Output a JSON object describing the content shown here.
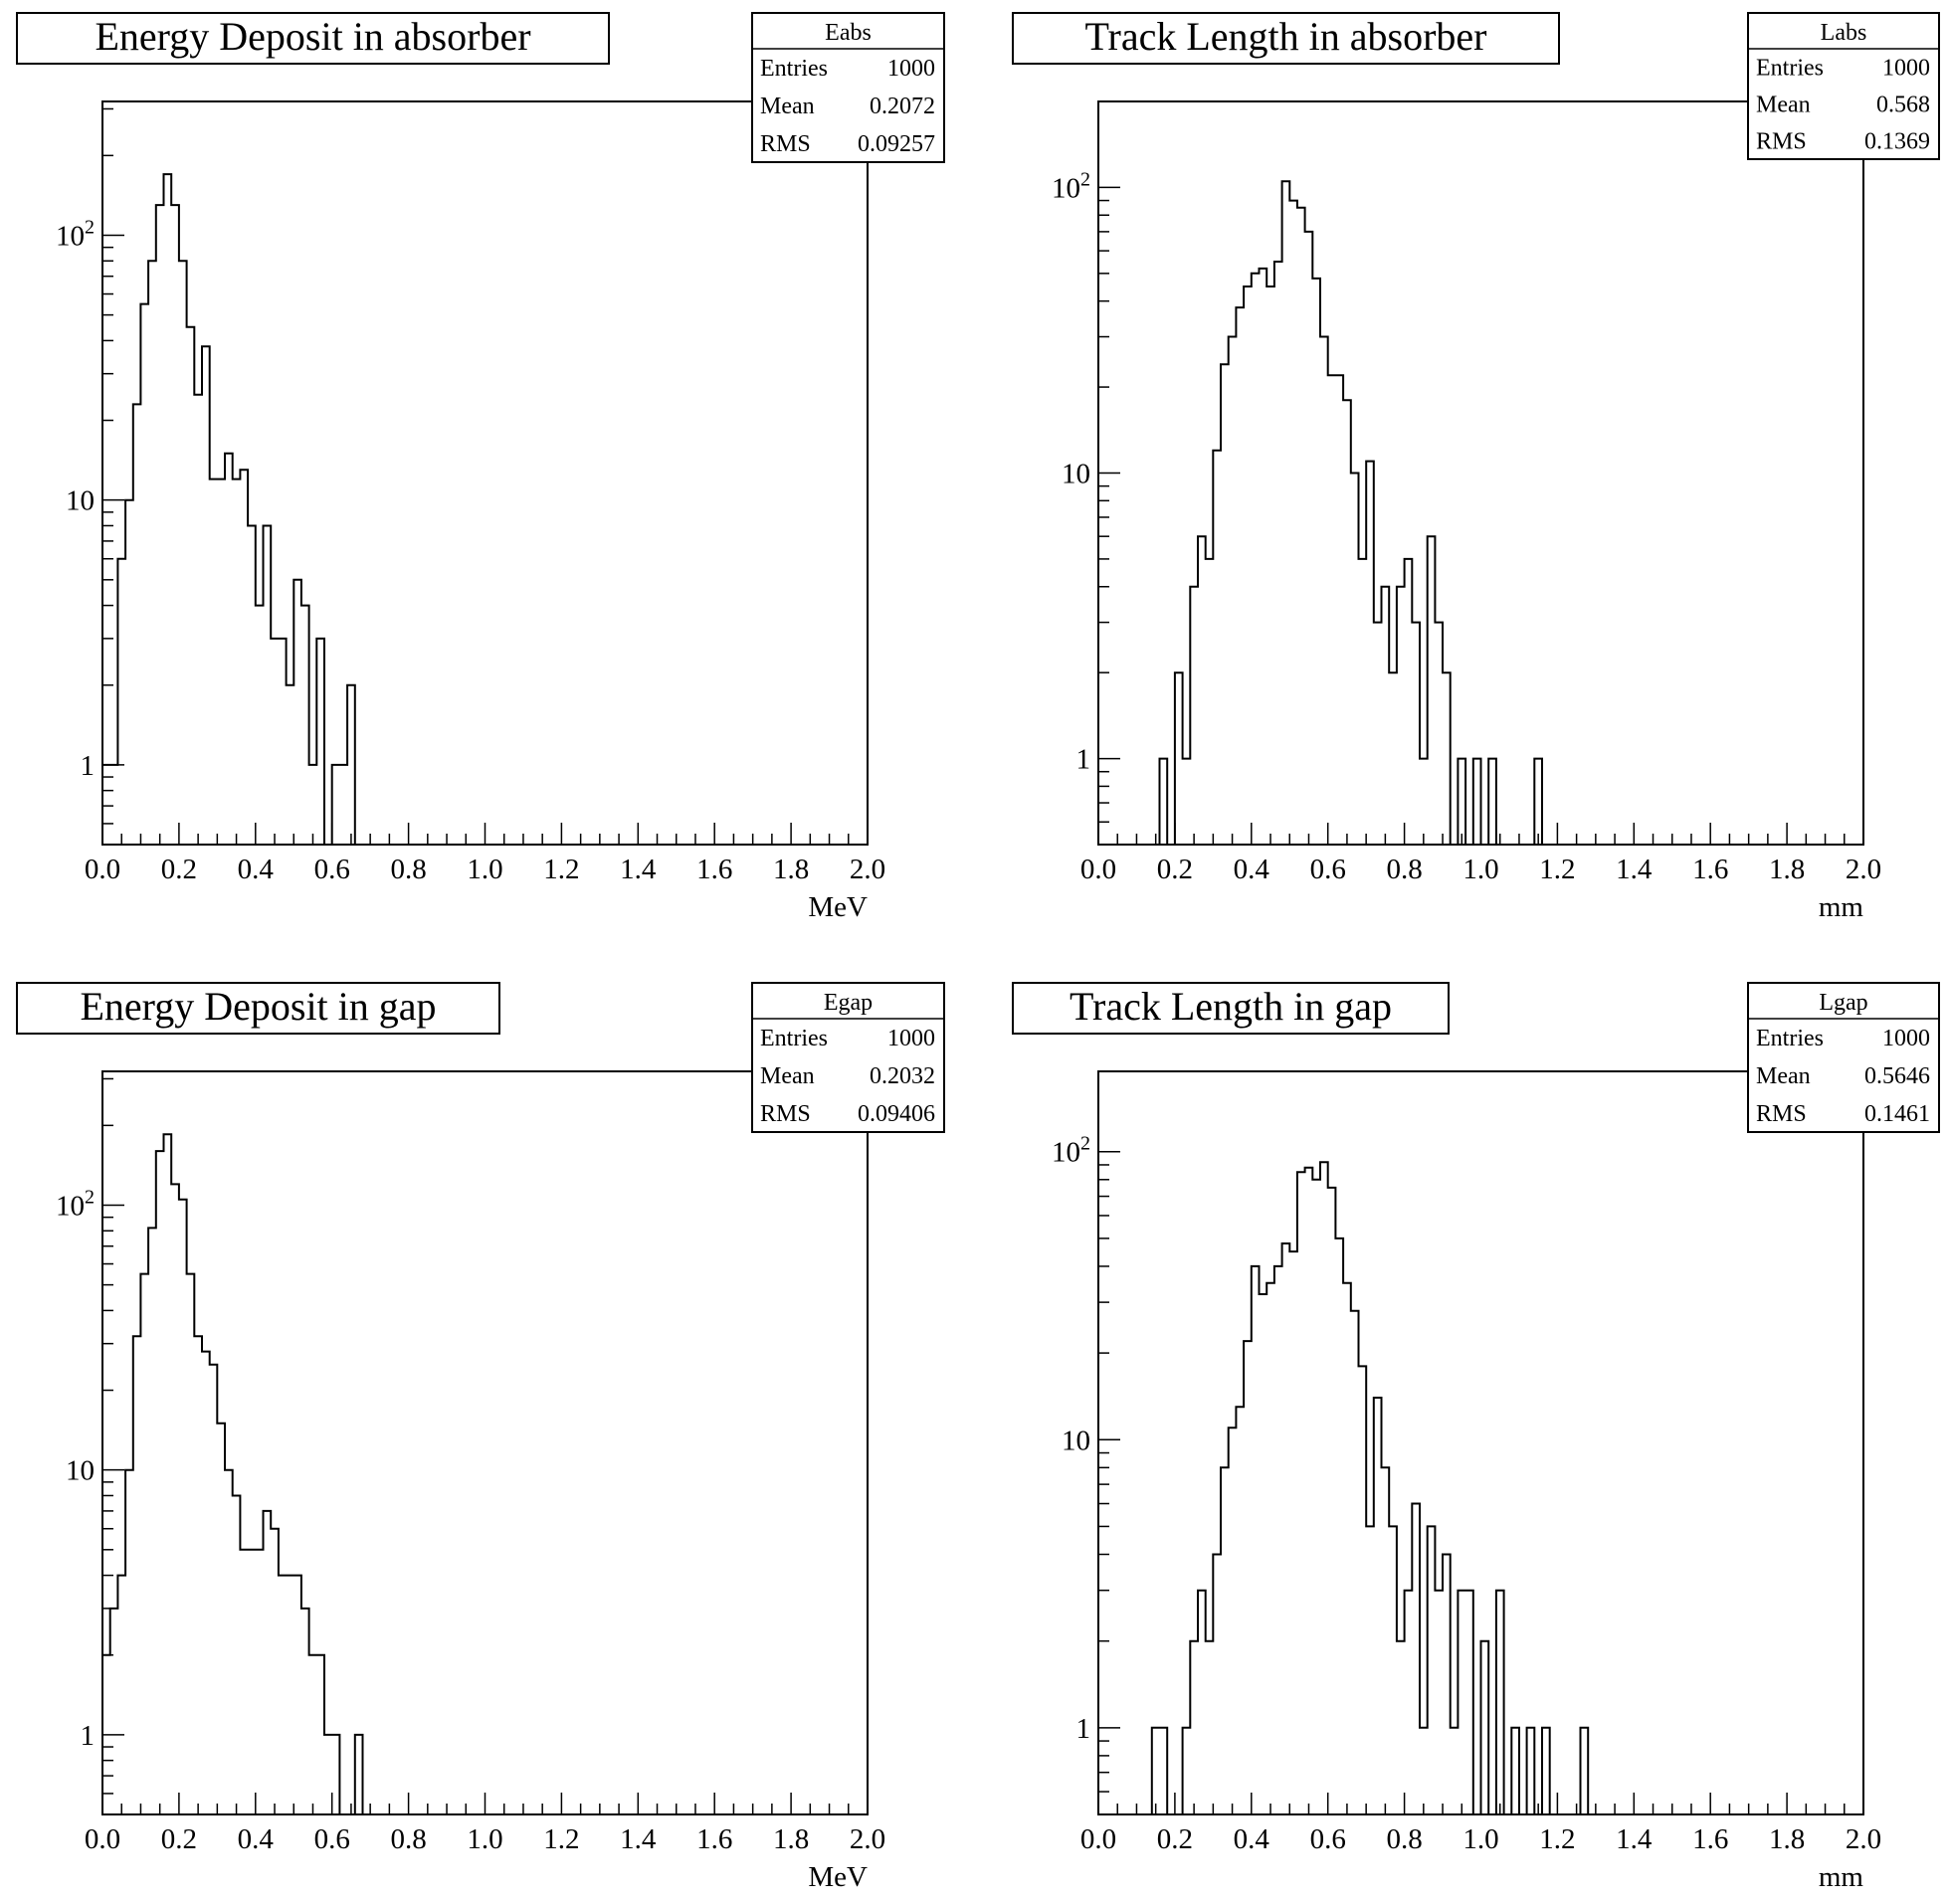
{
  "style": {
    "line_color": "#000000",
    "background": "#ffffff"
  },
  "chart_data": [
    {
      "id": "Eabs",
      "type": "histogram",
      "title": "Energy Deposit in absorber",
      "xlabel": "MeV",
      "ylabel": "",
      "xlim": [
        0.0,
        2.0
      ],
      "ylim": [
        0.5,
        320
      ],
      "yscale": "log",
      "grid": false,
      "stats_placement": "top-right",
      "x_ticks": [
        "0.0",
        "0.2",
        "0.4",
        "0.6",
        "0.8",
        "1.0",
        "1.2",
        "1.4",
        "1.6",
        "1.8",
        "2.0"
      ],
      "y_ticks": [
        {
          "value": 1,
          "label": "1"
        },
        {
          "value": 10,
          "label": "10"
        },
        {
          "value": 100,
          "label": "10",
          "sup": "2"
        }
      ],
      "stats": {
        "name": "Eabs",
        "entries": "1000",
        "mean": "0.2072",
        "rms": "0.09257"
      },
      "stat_labels": {
        "entries": "Entries",
        "mean": "Mean",
        "rms": "RMS"
      },
      "bin_width": 0.02,
      "values": [
        1,
        1,
        6,
        10,
        23,
        55,
        80,
        130,
        170,
        130,
        80,
        45,
        25,
        38,
        12,
        12,
        15,
        12,
        13,
        8,
        4,
        8,
        3,
        3,
        2,
        5,
        4,
        1,
        3,
        0,
        1,
        1,
        2
      ]
    },
    {
      "id": "Labs",
      "type": "histogram",
      "title": "Track Length in absorber",
      "xlabel": "mm",
      "ylabel": "",
      "xlim": [
        0.0,
        2.0
      ],
      "ylim": [
        0.5,
        200
      ],
      "yscale": "log",
      "grid": false,
      "stats_placement": "top-right",
      "x_ticks": [
        "0.0",
        "0.2",
        "0.4",
        "0.6",
        "0.8",
        "1.0",
        "1.2",
        "1.4",
        "1.6",
        "1.8",
        "2.0"
      ],
      "y_ticks": [
        {
          "value": 1,
          "label": "1"
        },
        {
          "value": 10,
          "label": "10"
        },
        {
          "value": 100,
          "label": "10",
          "sup": "2"
        }
      ],
      "stats": {
        "name": "Labs",
        "entries": "1000",
        "mean": "0.568",
        "rms": "0.1369"
      },
      "stat_labels": {
        "entries": "Entries",
        "mean": "Mean",
        "rms": "RMS"
      },
      "bin_width": 0.02,
      "values": [
        0,
        0,
        0,
        0,
        0,
        0,
        0,
        0,
        1,
        0,
        2,
        1,
        4,
        6,
        5,
        12,
        24,
        30,
        38,
        45,
        50,
        52,
        45,
        55,
        105,
        90,
        85,
        70,
        48,
        30,
        22,
        22,
        18,
        10,
        5,
        11,
        3,
        4,
        2,
        4,
        5,
        3,
        1,
        6,
        3,
        2,
        0,
        1,
        0,
        1,
        0,
        1,
        0,
        0,
        0,
        0,
        0,
        1
      ]
    },
    {
      "id": "Egap",
      "type": "histogram",
      "title": "Energy Deposit in gap",
      "xlabel": "MeV",
      "ylabel": "",
      "xlim": [
        0.0,
        2.0
      ],
      "ylim": [
        0.5,
        320
      ],
      "yscale": "log",
      "grid": false,
      "stats_placement": "top-right",
      "x_ticks": [
        "0.0",
        "0.2",
        "0.4",
        "0.6",
        "0.8",
        "1.0",
        "1.2",
        "1.4",
        "1.6",
        "1.8",
        "2.0"
      ],
      "y_ticks": [
        {
          "value": 1,
          "label": "1"
        },
        {
          "value": 10,
          "label": "10"
        },
        {
          "value": 100,
          "label": "10",
          "sup": "2"
        }
      ],
      "stats": {
        "name": "Egap",
        "entries": "1000",
        "mean": "0.2032",
        "rms": "0.09406"
      },
      "stat_labels": {
        "entries": "Entries",
        "mean": "Mean",
        "rms": "RMS"
      },
      "bin_width": 0.02,
      "values": [
        2,
        3,
        4,
        10,
        32,
        55,
        82,
        160,
        185,
        120,
        105,
        55,
        32,
        28,
        25,
        15,
        10,
        8,
        5,
        5,
        5,
        7,
        6,
        4,
        4,
        4,
        3,
        2,
        2,
        1,
        1,
        0,
        0,
        1
      ]
    },
    {
      "id": "Lgap",
      "type": "histogram",
      "title": "Track Length in gap",
      "xlabel": "mm",
      "ylabel": "",
      "xlim": [
        0.0,
        2.0
      ],
      "ylim": [
        0.5,
        190
      ],
      "yscale": "log",
      "grid": false,
      "stats_placement": "top-right",
      "x_ticks": [
        "0.0",
        "0.2",
        "0.4",
        "0.6",
        "0.8",
        "1.0",
        "1.2",
        "1.4",
        "1.6",
        "1.8",
        "2.0"
      ],
      "y_ticks": [
        {
          "value": 1,
          "label": "1"
        },
        {
          "value": 10,
          "label": "10"
        },
        {
          "value": 100,
          "label": "10",
          "sup": "2"
        }
      ],
      "stats": {
        "name": "Lgap",
        "entries": "1000",
        "mean": "0.5646",
        "rms": "0.1461"
      },
      "stat_labels": {
        "entries": "Entries",
        "mean": "Mean",
        "rms": "RMS"
      },
      "bin_width": 0.02,
      "values": [
        0,
        0,
        0,
        0,
        0,
        0,
        0,
        1,
        1,
        0,
        0,
        1,
        2,
        3,
        2,
        4,
        8,
        11,
        13,
        22,
        40,
        32,
        35,
        40,
        48,
        45,
        85,
        88,
        80,
        92,
        75,
        50,
        35,
        28,
        18,
        5,
        14,
        8,
        5,
        2,
        3,
        6,
        1,
        5,
        3,
        4,
        1,
        3,
        3,
        0,
        2,
        0,
        3,
        0,
        1,
        0,
        1,
        0,
        1,
        0,
        0,
        0,
        0,
        1
      ]
    }
  ]
}
